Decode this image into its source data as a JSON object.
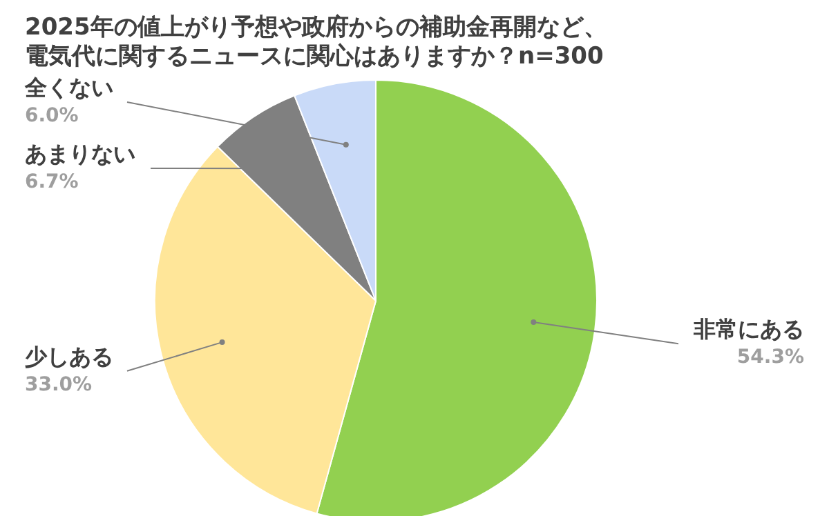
{
  "chart_data": {
    "type": "pie",
    "title": "2025年の値上がり予想や政府からの補助金再開など、",
    "subtitle": "電気代に関するニュースに関心はありますか？n=300",
    "categories": [
      "非常にある",
      "少しある",
      "あまりない",
      "全くない"
    ],
    "values": [
      54.3,
      33.0,
      6.7,
      6.0
    ],
    "colors": [
      "#92d050",
      "#ffe699",
      "#808080",
      "#c9daf8"
    ],
    "value_labels": [
      "54.3%",
      "33.0%",
      "6.7%",
      "6.0%"
    ]
  }
}
